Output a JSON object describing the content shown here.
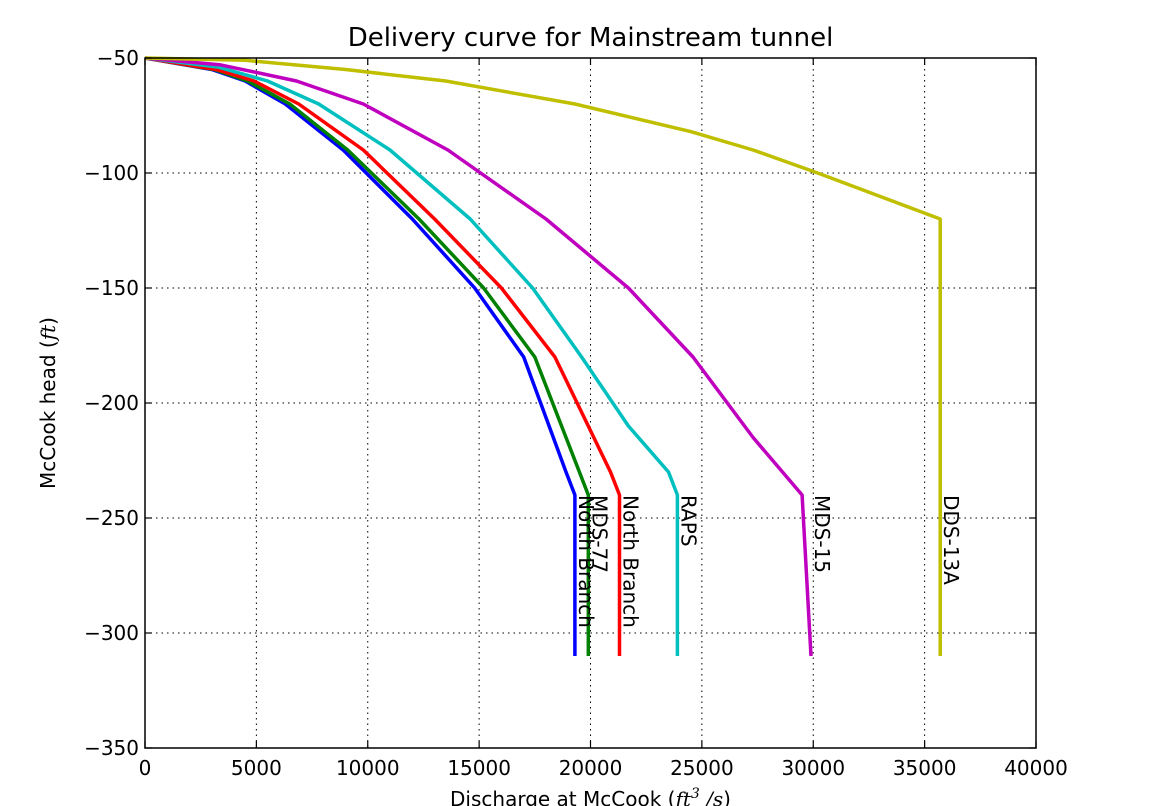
{
  "chart_data": {
    "type": "line",
    "title": "Delivery curve for Mainstream tunnel",
    "xlabel": "Discharge at McCook (",
    "xlabel_math": "ft",
    "xlabel_sup": "3",
    "xlabel_math2": " /s",
    "xlabel_end": ")",
    "ylabel": "McCook head (",
    "ylabel_math": "ft",
    "ylabel_end": ")",
    "xlim": [
      0,
      40000
    ],
    "ylim": [
      -350,
      -50
    ],
    "xticks": [
      0,
      5000,
      10000,
      15000,
      20000,
      25000,
      30000,
      35000,
      40000
    ],
    "yticks": [
      -350,
      -300,
      -250,
      -200,
      -150,
      -100,
      -50
    ],
    "xtick_labels": [
      "0",
      "5000",
      "10000",
      "15000",
      "20000",
      "25000",
      "30000",
      "35000",
      "40000"
    ],
    "ytick_labels": [
      "−350",
      "−300",
      "−250",
      "−200",
      "−150",
      "−100",
      "−50"
    ],
    "grid": true,
    "series": [
      {
        "name": "North Branch",
        "color": "#0000ff",
        "label_at": [
          19300,
          -240
        ],
        "x": [
          0,
          3000,
          4500,
          6300,
          8900,
          12000,
          14800,
          17000,
          18900,
          19300,
          19300
        ],
        "y": [
          -50,
          -55,
          -60,
          -70,
          -90,
          -120,
          -150,
          -180,
          -230,
          -240,
          -310
        ]
      },
      {
        "name": "MDS-77",
        "color": "#008000",
        "label_at": [
          19900,
          -240
        ],
        "x": [
          0,
          3100,
          4600,
          6500,
          9100,
          12300,
          15200,
          17500,
          19500,
          19900,
          19900
        ],
        "y": [
          -50,
          -55,
          -60,
          -70,
          -90,
          -120,
          -150,
          -180,
          -230,
          -240,
          -310
        ]
      },
      {
        "name": "North Branch",
        "color": "#ff0000",
        "label_at": [
          21300,
          -240
        ],
        "x": [
          0,
          3200,
          4900,
          6900,
          9800,
          13000,
          16000,
          18400,
          20900,
          21300,
          21300
        ],
        "y": [
          -50,
          -55,
          -60,
          -70,
          -90,
          -120,
          -150,
          -180,
          -230,
          -240,
          -310
        ]
      },
      {
        "name": "RAPS",
        "color": "#00bfbf",
        "label_at": [
          23900,
          -240
        ],
        "x": [
          0,
          3300,
          5500,
          7800,
          11000,
          14600,
          17400,
          19600,
          21700,
          23500,
          23900,
          23900
        ],
        "y": [
          -50,
          -54,
          -60,
          -70,
          -90,
          -120,
          -150,
          -180,
          -210,
          -230,
          -240,
          -310
        ]
      },
      {
        "name": "MDS-15",
        "color": "#bf00bf",
        "label_at": [
          29900,
          -240
        ],
        "x": [
          0,
          3400,
          6800,
          9800,
          13600,
          18000,
          21700,
          24600,
          27300,
          29500,
          29900
        ],
        "y": [
          -50,
          -53,
          -60,
          -70,
          -90,
          -120,
          -150,
          -180,
          -215,
          -240,
          -310
        ]
      },
      {
        "name": "DDS-13A",
        "color": "#bfbf00",
        "label_at": [
          35700,
          -240
        ],
        "x": [
          0,
          4500,
          9000,
          13500,
          19300,
          24500,
          27300,
          30200,
          35700,
          35700
        ],
        "y": [
          -50,
          -51,
          -55,
          -60,
          -70,
          -82,
          -90,
          -100,
          -120,
          -310
        ]
      }
    ]
  }
}
